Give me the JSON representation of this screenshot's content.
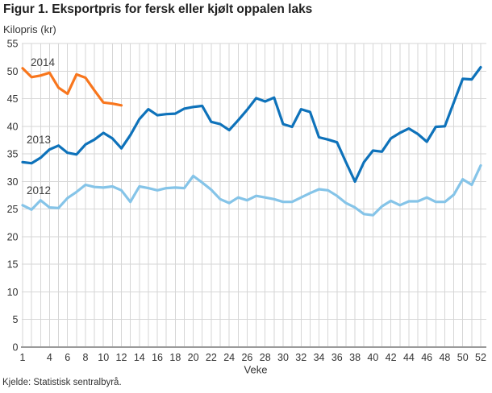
{
  "figure": {
    "title": "Figur 1. Eksportpris for fersk eller kjølt oppalen laks",
    "y_axis_title": "Kilopris (kr)",
    "source": "Kjelde: Statistisk sentralbyrå."
  },
  "chart_data": {
    "type": "line",
    "title": "Figur 1. Eksportpris for fersk eller kjølt oppalen laks",
    "xlabel": "Veke",
    "ylabel": "Kilopris (kr)",
    "xlim": [
      1,
      52
    ],
    "ylim": [
      0,
      55
    ],
    "grid": "on",
    "x_ticks": [
      1,
      4,
      6,
      8,
      10,
      12,
      14,
      16,
      18,
      20,
      22,
      24,
      26,
      28,
      30,
      32,
      34,
      36,
      38,
      40,
      42,
      44,
      46,
      48,
      50,
      52
    ],
    "y_ticks": [
      0,
      5,
      10,
      15,
      20,
      25,
      30,
      35,
      40,
      45,
      50,
      55
    ],
    "colors": {
      "grid": "#d6d6d6",
      "axis": "#9b9b9b",
      "tick_text": "#333333",
      "series_label_text": "#3f3f3f"
    },
    "series": [
      {
        "name": "2014",
        "color": "#f8761d",
        "start_week": 1,
        "values": [
          50.5,
          48.9,
          49.2,
          49.7,
          47.0,
          45.9,
          49.4,
          48.8,
          46.5,
          44.3,
          44.1,
          43.8
        ]
      },
      {
        "name": "2013",
        "color": "#0e72ba",
        "start_week": 1,
        "values": [
          33.5,
          33.3,
          34.3,
          35.8,
          36.5,
          35.2,
          34.9,
          36.7,
          37.6,
          38.8,
          37.8,
          36.0,
          38.4,
          41.3,
          43.1,
          42.0,
          42.2,
          42.3,
          43.2,
          43.5,
          43.7,
          40.8,
          40.4,
          39.3,
          41.1,
          43.0,
          45.1,
          44.5,
          45.2,
          40.4,
          39.9,
          43.1,
          42.6,
          38.0,
          37.6,
          37.1,
          33.5,
          30.0,
          33.5,
          35.6,
          35.4,
          37.8,
          38.8,
          39.6,
          38.6,
          37.2,
          39.9,
          40.0,
          44.3,
          48.6,
          48.5,
          50.7
        ]
      },
      {
        "name": "2012",
        "color": "#85c4e8",
        "start_week": 1,
        "values": [
          25.7,
          24.9,
          26.6,
          25.3,
          25.2,
          27.0,
          28.1,
          29.4,
          29.0,
          28.9,
          29.1,
          28.4,
          26.3,
          29.1,
          28.8,
          28.4,
          28.8,
          28.9,
          28.8,
          31.0,
          29.8,
          28.5,
          26.8,
          26.1,
          27.1,
          26.6,
          27.4,
          27.1,
          26.8,
          26.3,
          26.3,
          27.1,
          27.9,
          28.6,
          28.4,
          27.4,
          26.1,
          25.3,
          24.1,
          23.9,
          25.5,
          26.5,
          25.7,
          26.4,
          26.4,
          27.1,
          26.3,
          26.3,
          27.6,
          30.4,
          29.4,
          32.9
        ]
      }
    ]
  }
}
